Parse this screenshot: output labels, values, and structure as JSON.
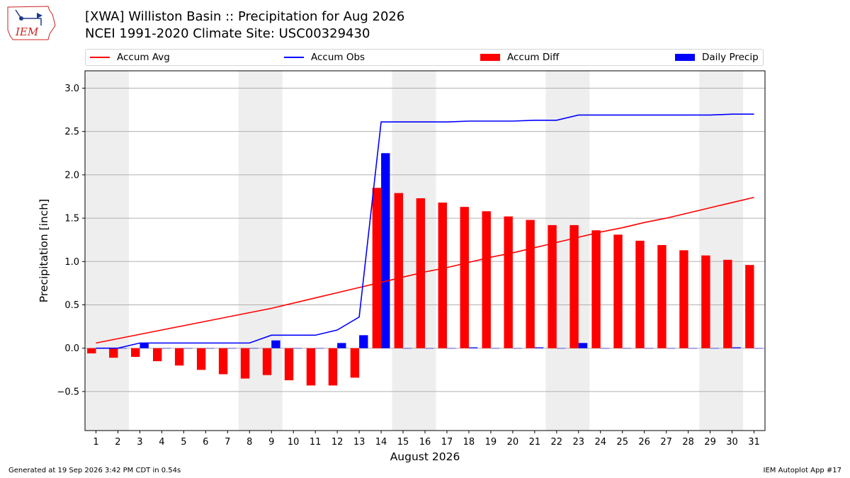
{
  "header": {
    "logo_text": "IEM",
    "title_line1": "[XWA] Williston Basin :: Precipitation for Aug 2026",
    "title_line2": "NCEI 1991-2020 Climate Site: USC00329430"
  },
  "legend": {
    "items": [
      {
        "label": "Accum Avg",
        "color": "#ff0000",
        "kind": "line"
      },
      {
        "label": "Accum Obs",
        "color": "#0000ff",
        "kind": "line"
      },
      {
        "label": "Accum Diff",
        "color": "#ff0000",
        "kind": "patch"
      },
      {
        "label": "Daily Precip",
        "color": "#0000ff",
        "kind": "patch"
      }
    ]
  },
  "footer": {
    "left": "Generated at 19 Sep 2026 3:42 PM CDT in 0.54s",
    "right": "IEM Autoplot App #17"
  },
  "chart_data": {
    "type": "bar",
    "xlabel": "August 2026",
    "ylabel": "Precipitation [inch]",
    "ylim": [
      -0.95,
      3.2
    ],
    "yticks": [
      -0.5,
      0.0,
      0.5,
      1.0,
      1.5,
      2.0,
      2.5,
      3.0
    ],
    "ytick_labels": [
      "−0.5",
      "0.0",
      "0.5",
      "1.0",
      "1.5",
      "2.0",
      "2.5",
      "3.0"
    ],
    "xlim": [
      0.5,
      31.5
    ],
    "categories": [
      "1",
      "2",
      "3",
      "4",
      "5",
      "6",
      "7",
      "8",
      "9",
      "10",
      "11",
      "12",
      "13",
      "14",
      "15",
      "16",
      "17",
      "18",
      "19",
      "20",
      "21",
      "22",
      "23",
      "24",
      "25",
      "26",
      "27",
      "28",
      "29",
      "30",
      "31"
    ],
    "weekend_shading": [
      [
        0.5,
        2.5
      ],
      [
        7.5,
        9.5
      ],
      [
        14.5,
        16.5
      ],
      [
        21.5,
        23.5
      ],
      [
        28.5,
        30.5
      ]
    ],
    "grid": "horizontal",
    "series": [
      {
        "name": "Accum Avg",
        "kind": "line",
        "color": "#ff0000",
        "values": [
          0.06,
          0.11,
          0.16,
          0.21,
          0.26,
          0.31,
          0.36,
          0.41,
          0.46,
          0.52,
          0.58,
          0.64,
          0.7,
          0.76,
          0.82,
          0.88,
          0.93,
          0.99,
          1.05,
          1.1,
          1.16,
          1.22,
          1.28,
          1.34,
          1.39,
          1.45,
          1.5,
          1.56,
          1.62,
          1.68,
          1.74
        ]
      },
      {
        "name": "Accum Obs",
        "kind": "line",
        "color": "#0000ff",
        "values": [
          0.0,
          0.0,
          0.06,
          0.06,
          0.06,
          0.06,
          0.06,
          0.06,
          0.15,
          0.15,
          0.15,
          0.21,
          0.36,
          2.61,
          2.61,
          2.61,
          2.61,
          2.62,
          2.62,
          2.62,
          2.63,
          2.63,
          2.69,
          2.69,
          2.69,
          2.69,
          2.69,
          2.69,
          2.69,
          2.7,
          2.7
        ]
      },
      {
        "name": "Accum Diff",
        "kind": "bar",
        "color": "#ff0000",
        "values": [
          -0.06,
          -0.11,
          -0.1,
          -0.15,
          -0.2,
          -0.25,
          -0.3,
          -0.35,
          -0.31,
          -0.37,
          -0.43,
          -0.43,
          -0.34,
          1.85,
          1.79,
          1.73,
          1.68,
          1.63,
          1.58,
          1.52,
          1.48,
          1.42,
          1.42,
          1.36,
          1.31,
          1.24,
          1.19,
          1.13,
          1.07,
          1.02,
          0.96
        ]
      },
      {
        "name": "Daily Precip",
        "kind": "bar",
        "color": "#0000ff",
        "values": [
          0.0,
          0.0,
          0.06,
          0.0,
          0.0,
          0.0,
          0.0,
          0.0,
          0.09,
          0.0,
          0.0,
          0.06,
          0.15,
          2.25,
          0.0,
          0.0,
          0.0,
          0.01,
          0.0,
          0.0,
          0.01,
          0.0,
          0.06,
          0.0,
          0.0,
          0.0,
          0.0,
          0.0,
          0.0,
          0.01,
          0.0
        ]
      }
    ]
  }
}
